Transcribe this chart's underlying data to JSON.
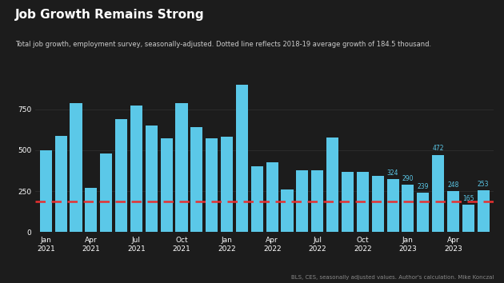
{
  "title": "Job Growth Remains Strong",
  "subtitle": "Total job growth, employment survey, seasonally-adjusted. Dotted line reflects 2018-19 average growth of 184.5 thousand.",
  "footer": "BLS, CES, seasonally adjusted values. Author's calculation. Mike Konczal",
  "bar_values": [
    500,
    585,
    785,
    270,
    480,
    690,
    770,
    650,
    570,
    785,
    640,
    570,
    580,
    900,
    400,
    425,
    260,
    375,
    375,
    575,
    365,
    365,
    345,
    324,
    290,
    239,
    472,
    248,
    165,
    253
  ],
  "annotated_indices": [
    23,
    24,
    25,
    26,
    27,
    28,
    29
  ],
  "annotated_values": [
    324,
    290,
    239,
    472,
    248,
    165,
    253
  ],
  "reference_line": 184.5,
  "bar_color": "#5BC8E8",
  "reference_line_color": "#E83030",
  "annotation_color": "#5BC8E8",
  "bg_color": "#1c1c1c",
  "text_color": "#ffffff",
  "subtitle_color": "#cccccc",
  "footer_color": "#888888",
  "grid_color": "#2e2e2e",
  "ylim": [
    0,
    950
  ],
  "yticks": [
    0,
    250,
    500,
    750
  ],
  "x_tick_positions": [
    0,
    3,
    6,
    9,
    12,
    15,
    18,
    21,
    24,
    27
  ],
  "x_tick_labels": [
    "Jan\n2021",
    "Apr\n2021",
    "Jul\n2021",
    "Oct\n2021",
    "Jan\n2022",
    "Apr\n2022",
    "Jul\n2022",
    "Oct\n2022",
    "Jan\n2023",
    "Apr\n2023"
  ]
}
